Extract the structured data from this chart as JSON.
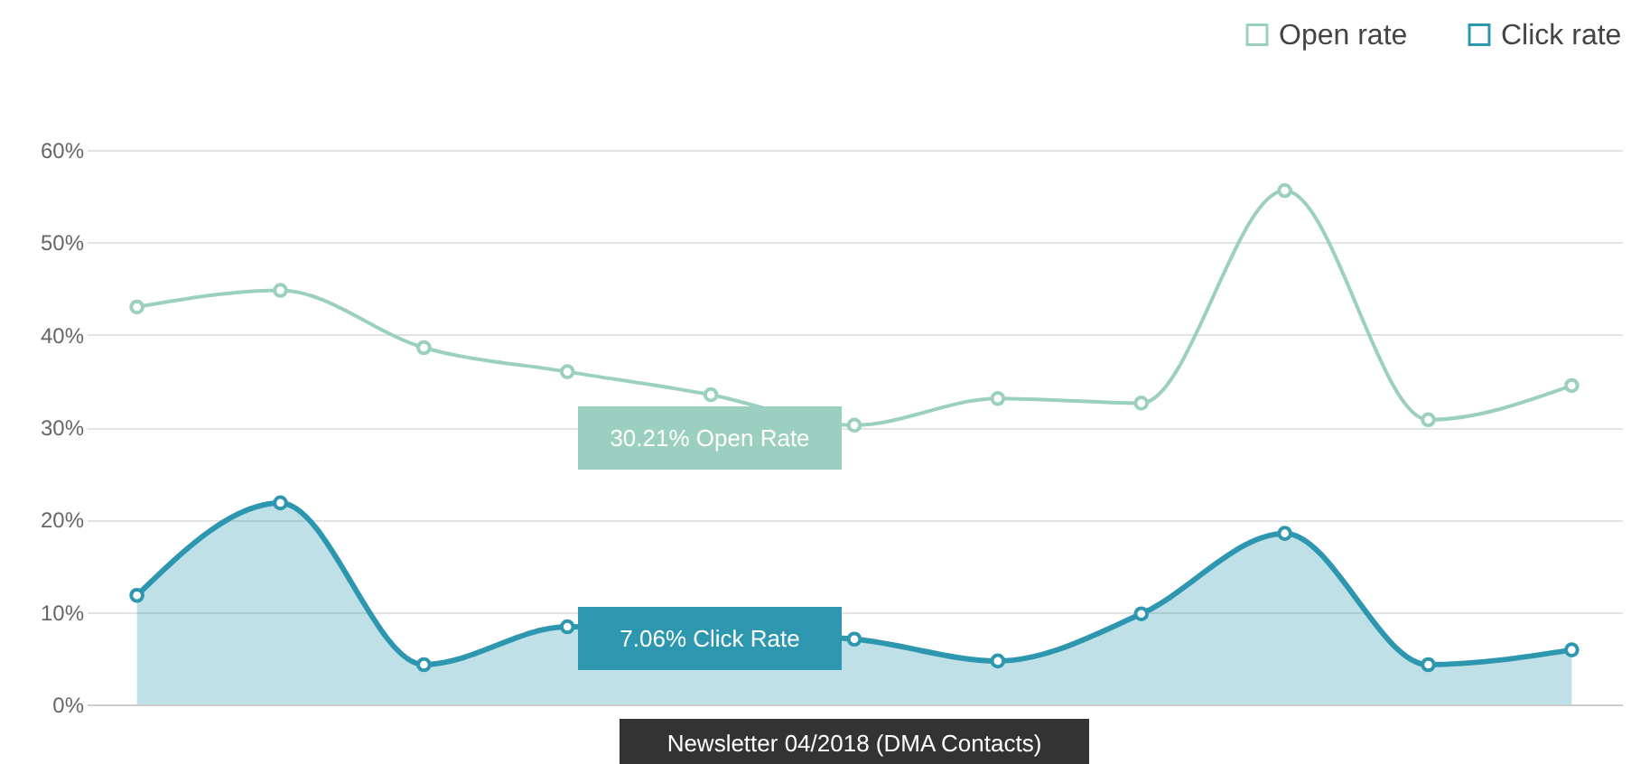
{
  "chart_data": {
    "type": "line",
    "categories": [
      null,
      null,
      null,
      null,
      null,
      null,
      null,
      null,
      null,
      null,
      null
    ],
    "series": [
      {
        "name": "Open rate",
        "color": "#9bcfc0",
        "values": [
          43,
          44.8,
          38.6,
          36,
          33.5,
          30.21,
          33.1,
          32.6,
          55.6,
          30.8,
          34.5
        ]
      },
      {
        "name": "Click rate",
        "type": "area",
        "color": "#2e97b0",
        "values": [
          11.8,
          21.8,
          4.3,
          8.4,
          null,
          7.06,
          4.7,
          9.8,
          18.5,
          4.3,
          5.9
        ]
      }
    ],
    "ylim": [
      0,
      60
    ],
    "yticks": [
      {
        "value": 0,
        "label": "0%"
      },
      {
        "value": 10,
        "label": "10%"
      },
      {
        "value": 20,
        "label": "20%"
      },
      {
        "value": 30,
        "label": "30%"
      },
      {
        "value": 40,
        "label": "40%"
      },
      {
        "value": 50,
        "label": "50%"
      },
      {
        "value": 60,
        "label": "60%"
      }
    ],
    "grid": "y",
    "legend": "top right",
    "marker": "circle",
    "line_style": "solid",
    "annotations": [
      "30.21% Open Rate",
      "7.06% Click Rate",
      "Newsletter 04/2018 (DMA Contacts)"
    ]
  }
}
